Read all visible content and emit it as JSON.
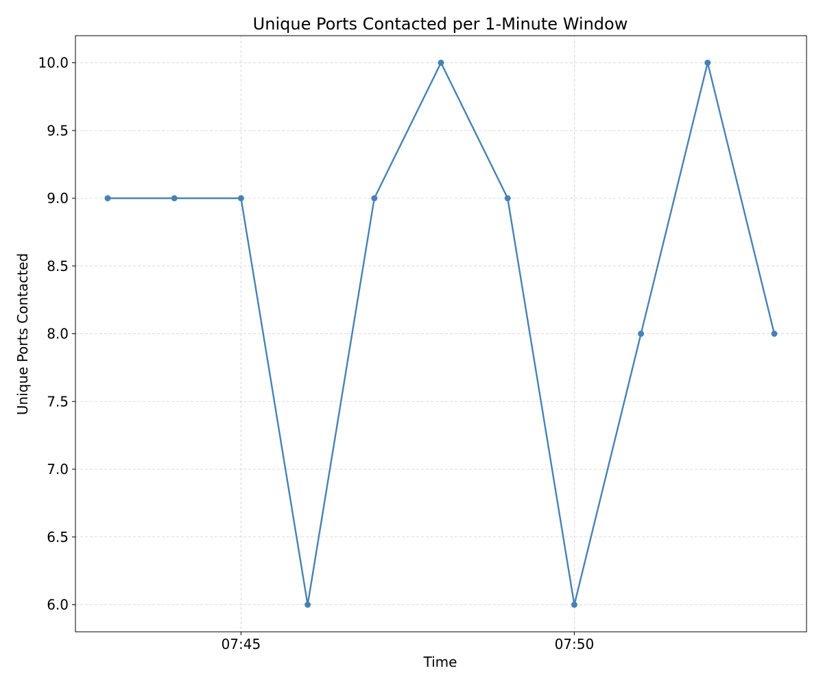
{
  "chart_data": {
    "type": "line",
    "title": "Unique Ports Contacted per 1-Minute Window",
    "xlabel": "Time",
    "ylabel": "Unique Ports Contacted",
    "x": [
      "07:43",
      "07:44",
      "07:45",
      "07:46",
      "07:47",
      "07:48",
      "07:49",
      "07:50",
      "07:51",
      "07:52",
      "07:53"
    ],
    "x_ticks": [
      "07:45",
      "07:50"
    ],
    "y_ticks": [
      "6.0",
      "6.5",
      "7.0",
      "7.5",
      "8.0",
      "8.5",
      "9.0",
      "9.5",
      "10.0"
    ],
    "ylim": [
      5.8,
      10.2
    ],
    "grid": true,
    "series": [
      {
        "values": [
          9,
          9,
          9,
          6,
          9,
          10,
          9,
          6,
          8,
          10,
          8
        ],
        "color": "#4682b4"
      }
    ]
  }
}
